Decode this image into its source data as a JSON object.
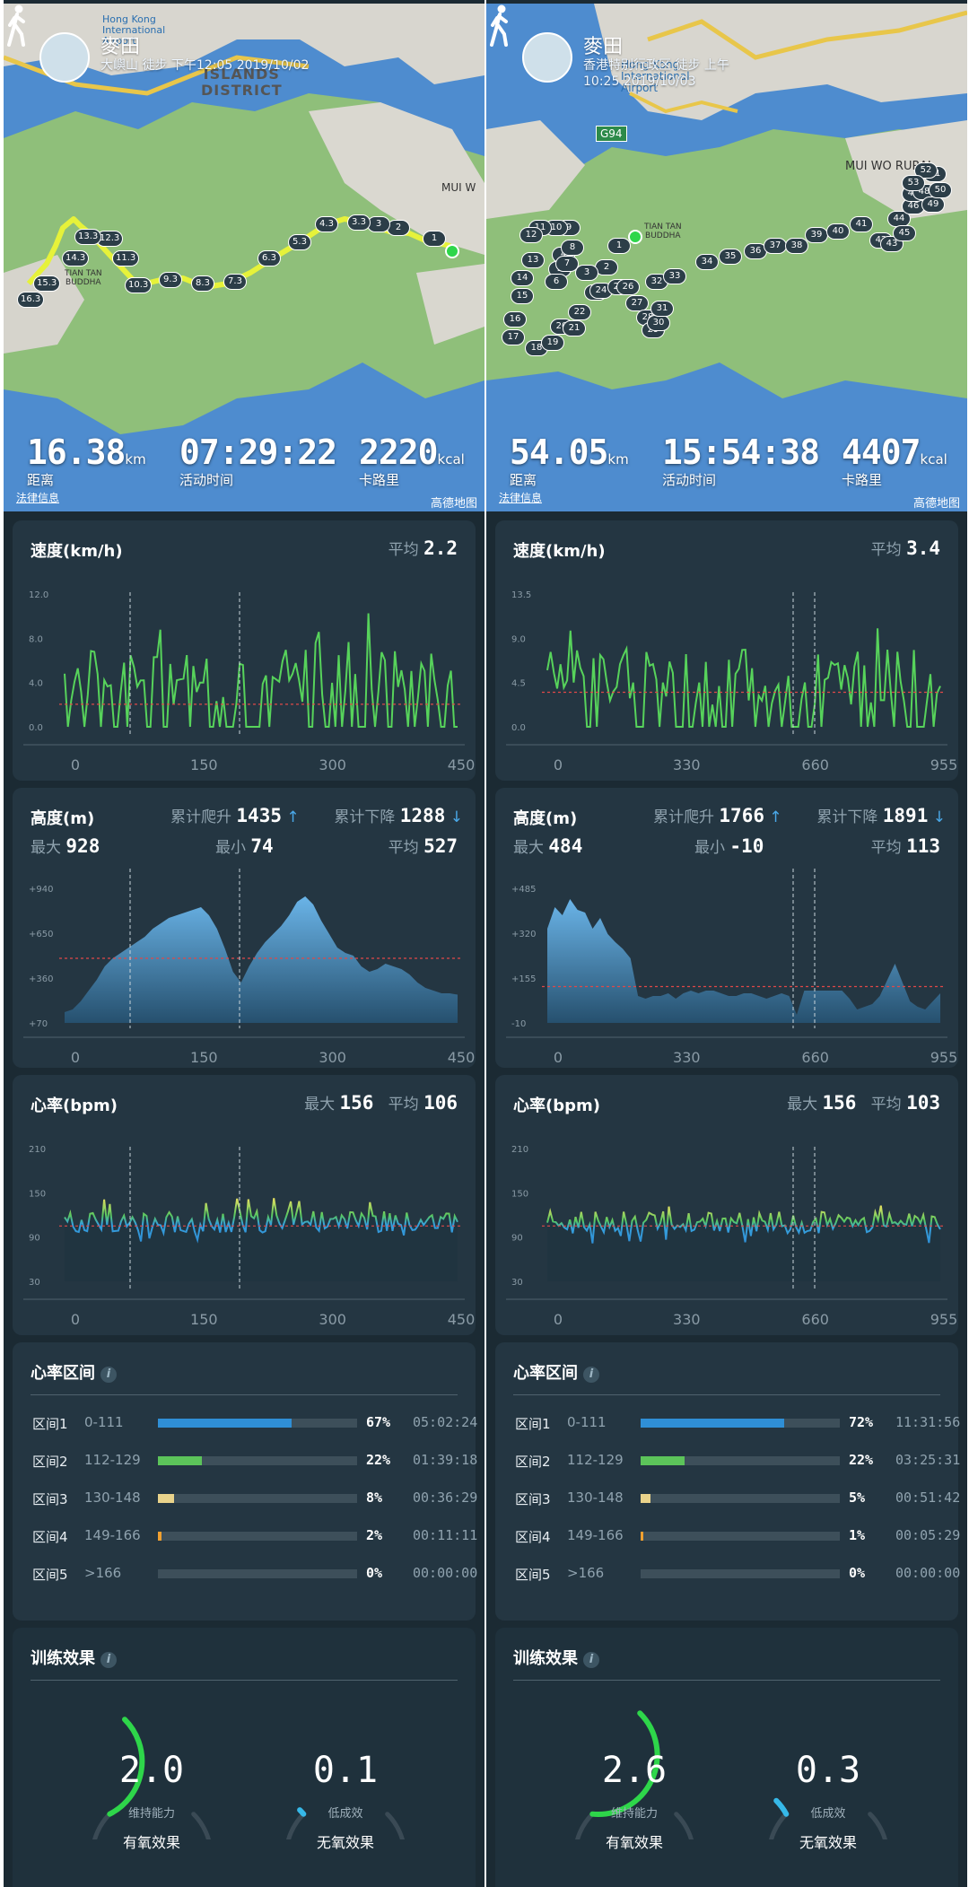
{
  "left": {
    "header": {
      "place": "麥田",
      "subtitle": "大嶼山 徒步 下午12:05 2019/10/02"
    },
    "map_labels": {
      "district": "ISLANDS\nDISTRICT",
      "airport": "Hong Kong\nInternational\nAirport",
      "buddha": "TIAN TAN\nBUDDHA",
      "mui": "MUI W"
    },
    "markers": [
      "1",
      "2",
      "3",
      "3.3",
      "4.3",
      "5.3",
      "6.3",
      "7.3",
      "8.3",
      "9.3",
      "10.3",
      "11.3",
      "12.3",
      "13.3",
      "14.3",
      "15.3",
      "16.3"
    ],
    "summary": {
      "distance": "16.38",
      "distance_unit": "km",
      "distance_label": "距离",
      "duration": "07:29:22",
      "duration_label": "活动时间",
      "calories": "2220",
      "calories_unit": "kcal",
      "calories_label": "卡路里"
    },
    "legal": "法律信息",
    "amap": "高德地图",
    "speed": {
      "title": "速度(km/h)",
      "avg_label": "平均",
      "avg": "2.2",
      "y_ticks": [
        "12.0",
        "8.0",
        "4.0",
        "0.0"
      ],
      "x_ticks": [
        "0",
        "150",
        "300",
        "450"
      ]
    },
    "altitude": {
      "title": "高度(m)",
      "climb_label": "累计爬升",
      "climb": "1435",
      "descent_label": "累计下降",
      "descent": "1288",
      "max_label": "最大",
      "max": "928",
      "min_label": "最小",
      "min": "74",
      "avg_label": "平均",
      "avg": "527",
      "y_ticks": [
        "+940",
        "+650",
        "+360",
        "+70"
      ],
      "x_ticks": [
        "0",
        "150",
        "300",
        "450"
      ]
    },
    "heart": {
      "title": "心率(bpm)",
      "max_label": "最大",
      "max": "156",
      "avg_label": "平均",
      "avg": "106",
      "y_ticks": [
        "210",
        "150",
        "90",
        "30"
      ],
      "x_ticks": [
        "0",
        "150",
        "300",
        "450"
      ]
    },
    "zones": {
      "title": "心率区间",
      "rows": [
        {
          "name": "区间1",
          "range": "0-111",
          "pct": "67%",
          "time": "05:02:24",
          "fill": 0.67,
          "color": "#2f8fd6"
        },
        {
          "name": "区间2",
          "range": "112-129",
          "pct": "22%",
          "time": "01:39:18",
          "fill": 0.22,
          "color": "#5cc45a"
        },
        {
          "name": "区间3",
          "range": "130-148",
          "pct": "8%",
          "time": "00:36:29",
          "fill": 0.08,
          "color": "#e9d38b"
        },
        {
          "name": "区间4",
          "range": "149-166",
          "pct": "2%",
          "time": "00:11:11",
          "fill": 0.02,
          "color": "#f0a030"
        },
        {
          "name": "区间5",
          "range": ">166",
          "pct": "0%",
          "time": "00:00:00",
          "fill": 0,
          "color": "#e05050"
        }
      ]
    },
    "training": {
      "title": "训练效果",
      "aerobic": "2.0",
      "aerobic_desc": "维持能力",
      "aerobic_name": "有氧效果",
      "aerobic_level": 0.4,
      "anaerobic": "0.1",
      "anaerobic_desc": "低成效",
      "anaerobic_name": "无氧效果",
      "anaerobic_level": 0.02
    }
  },
  "right": {
    "header": {
      "place": "麥田",
      "subtitle": "香港特别行政区 徒步 上午\n10:25 2019/10/03"
    },
    "map_labels": {
      "airport": "Hong Kong\nInternational\nAirport",
      "buddha": "TIAN TAN\nBUDDHA",
      "mui": "MUI WO RURAL",
      "road": "G94"
    },
    "markers": [
      "1",
      "2",
      "3",
      "4",
      "5",
      "6",
      "7",
      "8",
      "9",
      "10",
      "11",
      "12",
      "13",
      "14",
      "15",
      "16",
      "17",
      "18",
      "19",
      "20",
      "21",
      "22",
      "23",
      "24",
      "25",
      "26",
      "27",
      "28",
      "29",
      "30",
      "31",
      "32",
      "33",
      "34",
      "35",
      "36",
      "37",
      "38",
      "39",
      "40",
      "41",
      "42",
      "43",
      "44",
      "45",
      "46",
      "47",
      "48",
      "49",
      "50",
      "51",
      "52",
      "53"
    ],
    "summary": {
      "distance": "54.05",
      "distance_unit": "km",
      "distance_label": "距离",
      "duration": "15:54:38",
      "duration_label": "活动时间",
      "calories": "4407",
      "calories_unit": "kcal",
      "calories_label": "卡路里"
    },
    "legal": "法律信息",
    "amap": "高德地图",
    "speed": {
      "title": "速度(km/h)",
      "avg_label": "平均",
      "avg": "3.4",
      "y_ticks": [
        "13.5",
        "9.0",
        "4.5",
        "0.0"
      ],
      "x_ticks": [
        "0",
        "330",
        "660",
        "955"
      ]
    },
    "altitude": {
      "title": "高度(m)",
      "climb_label": "累计爬升",
      "climb": "1766",
      "descent_label": "累计下降",
      "descent": "1891",
      "max_label": "最大",
      "max": "484",
      "min_label": "最小",
      "min": "-10",
      "avg_label": "平均",
      "avg": "113",
      "y_ticks": [
        "+485",
        "+320",
        "+155",
        "-10"
      ],
      "x_ticks": [
        "0",
        "330",
        "660",
        "955"
      ]
    },
    "heart": {
      "title": "心率(bpm)",
      "max_label": "最大",
      "max": "156",
      "avg_label": "平均",
      "avg": "103",
      "y_ticks": [
        "210",
        "150",
        "90",
        "30"
      ],
      "x_ticks": [
        "0",
        "330",
        "660",
        "955"
      ]
    },
    "zones": {
      "title": "心率区间",
      "rows": [
        {
          "name": "区间1",
          "range": "0-111",
          "pct": "72%",
          "time": "11:31:56",
          "fill": 0.72,
          "color": "#2f8fd6"
        },
        {
          "name": "区间2",
          "range": "112-129",
          "pct": "22%",
          "time": "03:25:31",
          "fill": 0.22,
          "color": "#5cc45a"
        },
        {
          "name": "区间3",
          "range": "130-148",
          "pct": "5%",
          "time": "00:51:42",
          "fill": 0.05,
          "color": "#e9d38b"
        },
        {
          "name": "区间4",
          "range": "149-166",
          "pct": "1%",
          "time": "00:05:29",
          "fill": 0.01,
          "color": "#f0a030"
        },
        {
          "name": "区间5",
          "range": ">166",
          "pct": "0%",
          "time": "00:00:00",
          "fill": 0,
          "color": "#e05050"
        }
      ]
    },
    "training": {
      "title": "训练效果",
      "aerobic": "2.6",
      "aerobic_desc": "维持能力",
      "aerobic_name": "有氧效果",
      "aerobic_level": 0.52,
      "anaerobic": "0.3",
      "anaerobic_desc": "低成效",
      "anaerobic_name": "无氧效果",
      "anaerobic_level": 0.06
    }
  }
}
